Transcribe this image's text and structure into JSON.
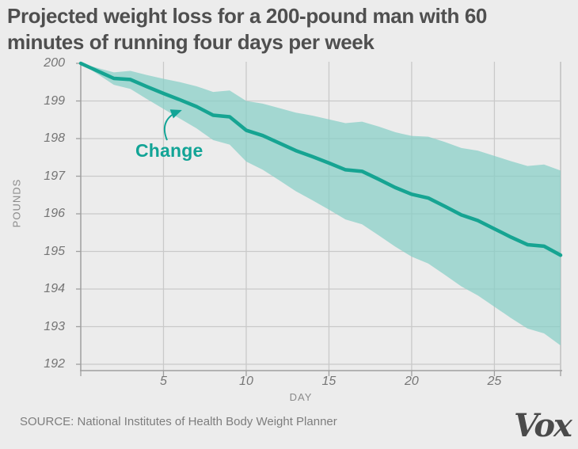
{
  "header": {
    "title_line1": "Projected weight loss for a 200-pound man with 60",
    "title_line2": "minutes of running four days per week"
  },
  "annotation": {
    "label": "Change"
  },
  "footer": {
    "source": "SOURCE: National Institutes of Health Body Weight Planner",
    "logo": "Vox"
  },
  "colors": {
    "background": "#ececec",
    "grid": "#c9c9c9",
    "axis": "#9f9f9f",
    "band_fill": "#86cfc6",
    "line": "#16a492",
    "annotation": "#12a496",
    "title_text": "#4f4f4f",
    "tick_text": "#757575"
  },
  "chart_data": {
    "type": "line",
    "title": "Projected weight loss for a 200-pound man with 60 minutes of running four days per week",
    "xlabel": "DAY",
    "ylabel": "POUNDS",
    "xlim": [
      0,
      29
    ],
    "ylim": [
      191.8,
      200
    ],
    "x_ticks": [
      5,
      10,
      15,
      20,
      25
    ],
    "y_ticks": [
      192,
      193,
      194,
      195,
      196,
      197,
      198,
      199,
      200
    ],
    "grid": true,
    "legend": "none (in-chart annotation with arrow pointing at line)",
    "x": [
      0,
      1,
      2,
      3,
      4,
      5,
      6,
      7,
      8,
      9,
      10,
      11,
      12,
      13,
      14,
      15,
      16,
      17,
      18,
      19,
      20,
      21,
      22,
      23,
      24,
      25,
      26,
      27,
      28,
      29
    ],
    "series": [
      {
        "name": "Change",
        "role": "projected-weight-line",
        "values": [
          200.0,
          199.8,
          199.6,
          199.57,
          199.38,
          199.2,
          199.03,
          198.85,
          198.62,
          198.58,
          198.22,
          198.08,
          197.88,
          197.68,
          197.52,
          197.35,
          197.17,
          197.13,
          196.92,
          196.7,
          196.52,
          196.42,
          196.2,
          195.97,
          195.82,
          195.6,
          195.38,
          195.18,
          195.14,
          194.9
        ]
      },
      {
        "name": "upper_bound",
        "role": "uncertainty-band-upper-edge",
        "values": [
          200.0,
          199.88,
          199.76,
          199.8,
          199.69,
          199.59,
          199.5,
          199.39,
          199.24,
          199.28,
          199.0,
          198.93,
          198.81,
          198.69,
          198.61,
          198.51,
          198.41,
          198.45,
          198.32,
          198.17,
          198.07,
          198.05,
          197.91,
          197.75,
          197.68,
          197.54,
          197.4,
          197.27,
          197.31,
          197.15
        ]
      },
      {
        "name": "lower_bound",
        "role": "uncertainty-band-lower-edge",
        "values": [
          200.0,
          199.72,
          199.43,
          199.32,
          199.05,
          198.79,
          198.53,
          198.27,
          197.96,
          197.84,
          197.39,
          197.17,
          196.89,
          196.6,
          196.36,
          196.11,
          195.85,
          195.72,
          195.43,
          195.13,
          194.86,
          194.68,
          194.38,
          194.07,
          193.83,
          193.53,
          193.23,
          192.95,
          192.82,
          192.5
        ]
      }
    ]
  }
}
